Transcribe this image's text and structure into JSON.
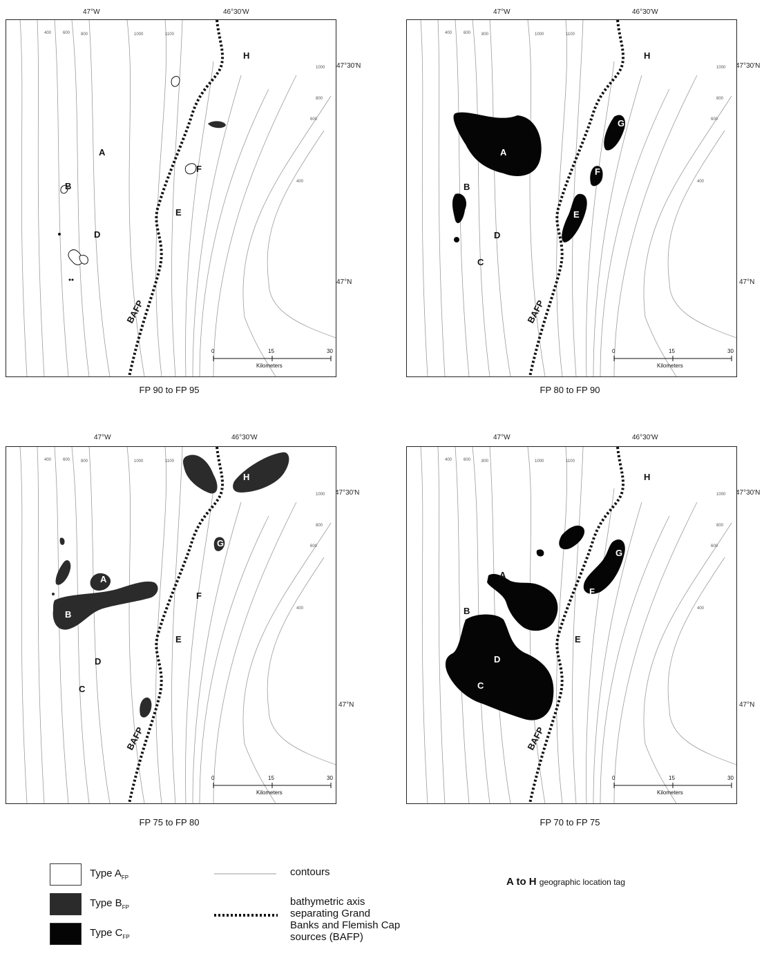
{
  "panels": [
    {
      "caption": "FP 90 to FP 95"
    },
    {
      "caption": "FP 80 to FP 90"
    },
    {
      "caption": "FP 75 to FP 80"
    },
    {
      "caption": "FP 70 to FP 75"
    }
  ],
  "axes": {
    "lon_west": "47°W",
    "lon_east": "46°30'W",
    "lat_north": "47°30'N",
    "lat_south": "47°N"
  },
  "scale": {
    "t0": "0",
    "t1": "15",
    "t2": "30",
    "unit": "Kilometers"
  },
  "contour_depths": {
    "d400": "400",
    "d600": "600",
    "d800": "800",
    "d1000": "1000",
    "d1100": "1100"
  },
  "axis_label": "BAFP",
  "location_tags": [
    "A",
    "B",
    "C",
    "D",
    "E",
    "F",
    "G",
    "H"
  ],
  "legend": {
    "type_a": {
      "main": "Type A",
      "sub": "FP",
      "color": "#ffffff"
    },
    "type_b": {
      "main": "Type B",
      "sub": "FP",
      "color": "#2b2b2b"
    },
    "type_c": {
      "main": "Type C",
      "sub": "FP",
      "color": "#050505"
    },
    "contours": "contours",
    "bafp_line1": "bathymetric axis",
    "bafp_line2": "separating Grand",
    "bafp_line3": "Banks and Flemish Cap",
    "bafp_line4": "sources (BAFP)",
    "loc_letters": "A to H",
    "loc_text": "geographic location tag"
  },
  "colors": {
    "type_b": "#2b2b2b",
    "type_c": "#050505",
    "contour": "#9a9a9a",
    "axis": "#111111"
  }
}
